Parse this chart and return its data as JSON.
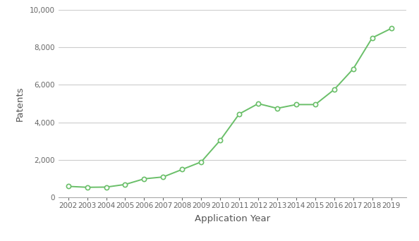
{
  "years": [
    2002,
    2003,
    2004,
    2005,
    2006,
    2007,
    2008,
    2009,
    2010,
    2011,
    2012,
    2013,
    2014,
    2015,
    2016,
    2017,
    2018,
    2019
  ],
  "patents": [
    600,
    550,
    560,
    700,
    1000,
    1100,
    1500,
    1900,
    3050,
    4450,
    5000,
    4750,
    4950,
    4950,
    5750,
    6850,
    8500,
    9000
  ],
  "line_color": "#6abf69",
  "marker_face": "#ffffff",
  "xlabel": "Application Year",
  "ylabel": "Patents",
  "ylim": [
    0,
    10000
  ],
  "yticks": [
    0,
    2000,
    4000,
    6000,
    8000,
    10000
  ],
  "grid_color": "#cccccc",
  "bg_color": "#ffffff",
  "tick_label_color": "#666666",
  "axis_label_color": "#555555",
  "xlabel_fontsize": 9.5,
  "ylabel_fontsize": 9.5
}
